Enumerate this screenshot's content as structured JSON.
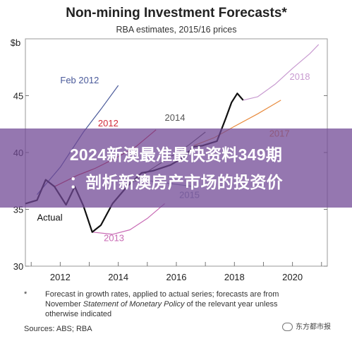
{
  "overlay": {
    "line1": "2024新澳最准最快资料349期",
    "line2": "：剖析新澳房产市场的投资价"
  },
  "notes": {
    "asterisk": "*",
    "line1": "Forecast in growth rates, applied to actual series; forecasts are from",
    "line2_pre": "November ",
    "line2_italic": "Statement of Monetary Policy",
    "line2_post": " of the relevant year unless",
    "line3": "otherwise indicated",
    "sources": "Sources:   ABS; RBA"
  },
  "watermark": {
    "text": "东方都市报"
  },
  "chart_data": {
    "type": "line",
    "title": "Non-mining Investment Forecasts*",
    "subtitle": "RBA estimates, 2015/16 prices",
    "ylabel": "$b",
    "ylim": [
      30,
      50
    ],
    "xlim": [
      2010.8,
      2021.2
    ],
    "x_ticks": [
      2012,
      2014,
      2016,
      2018,
      2020
    ],
    "y_ticks": [
      30,
      35,
      40,
      45
    ],
    "y_tick_labels": [
      "30",
      "35",
      "40",
      "45",
      "$b"
    ],
    "grid": false,
    "colors": {
      "Actual": "#111111",
      "Feb 2012": "#4a5a9a",
      "2012": "#d22a3a",
      "2013": "#c86ab4",
      "2014": "#555555",
      "2015": "#8b9ab0",
      "2017": "#e88a3c",
      "2018": "#c89ad0"
    },
    "series": [
      {
        "name": "Actual",
        "x": [
          2010.8,
          2011.2,
          2011.5,
          2011.8,
          2012.2,
          2012.5,
          2012.8,
          2013.1,
          2013.4,
          2013.8,
          2014.3,
          2014.8,
          2015.2,
          2015.8,
          2016.2,
          2016.6,
          2016.9,
          2017.4,
          2017.7,
          2017.9,
          2018.1,
          2018.3
        ],
        "y": [
          35.5,
          35.8,
          37.6,
          37.0,
          35.4,
          37.0,
          35.3,
          33.0,
          33.6,
          35.5,
          37.0,
          38.2,
          38.4,
          38.9,
          39.5,
          40.5,
          40.6,
          41.0,
          43.0,
          44.4,
          45.2,
          44.6
        ]
      },
      {
        "name": "Feb 2012",
        "x": [
          2011.2,
          2012.0,
          2012.8,
          2013.4,
          2014.0
        ],
        "y": [
          36.3,
          38.7,
          41.8,
          43.8,
          45.9
        ]
      },
      {
        "name": "2012",
        "x": [
          2011.8,
          2012.6,
          2013.2,
          2013.9,
          2014.6,
          2015.3
        ],
        "y": [
          37.0,
          38.0,
          38.6,
          39.5,
          40.5,
          42.0
        ]
      },
      {
        "name": "2013",
        "x": [
          2013.1,
          2013.8,
          2014.4,
          2015.0,
          2015.6
        ],
        "y": [
          33.0,
          32.8,
          33.2,
          34.2,
          35.5
        ]
      },
      {
        "name": "2014",
        "x": [
          2014.1,
          2014.6,
          2015.0,
          2015.6,
          2016.4,
          2017.0
        ],
        "y": [
          37.2,
          37.5,
          38.3,
          39.3,
          40.6,
          41.8
        ]
      },
      {
        "name": "2015",
        "x": [
          2014.8,
          2015.4,
          2016.0,
          2016.6
        ],
        "y": [
          37.6,
          37.4,
          37.2,
          37.0
        ]
      },
      {
        "name": "2017",
        "x": [
          2016.6,
          2017.3,
          2018.0,
          2018.8,
          2019.6
        ],
        "y": [
          40.6,
          41.3,
          42.3,
          43.4,
          44.6
        ]
      },
      {
        "name": "2018",
        "x": [
          2018.3,
          2018.8,
          2019.4,
          2020.0,
          2020.6,
          2020.9
        ],
        "y": [
          44.6,
          44.9,
          46.0,
          47.4,
          48.7,
          49.5
        ]
      }
    ],
    "labels": [
      {
        "series": "Feb 2012",
        "text": "Feb 2012",
        "x": 2012.0,
        "y": 46.1
      },
      {
        "series": "2012",
        "text": "2012",
        "x": 2013.3,
        "y": 42.3
      },
      {
        "series": "2014",
        "text": "2014",
        "x": 2015.6,
        "y": 42.8
      },
      {
        "series": "2015",
        "text": "2015",
        "x": 2016.1,
        "y": 36.0
      },
      {
        "series": "2013",
        "text": "2013",
        "x": 2013.5,
        "y": 32.2
      },
      {
        "series": "Actual",
        "text": "Actual",
        "x": 2011.2,
        "y": 34.0
      },
      {
        "series": "2017",
        "text": "2017",
        "x": 2019.2,
        "y": 41.4
      },
      {
        "series": "2018",
        "text": "2018",
        "x": 2019.9,
        "y": 46.4
      }
    ]
  }
}
